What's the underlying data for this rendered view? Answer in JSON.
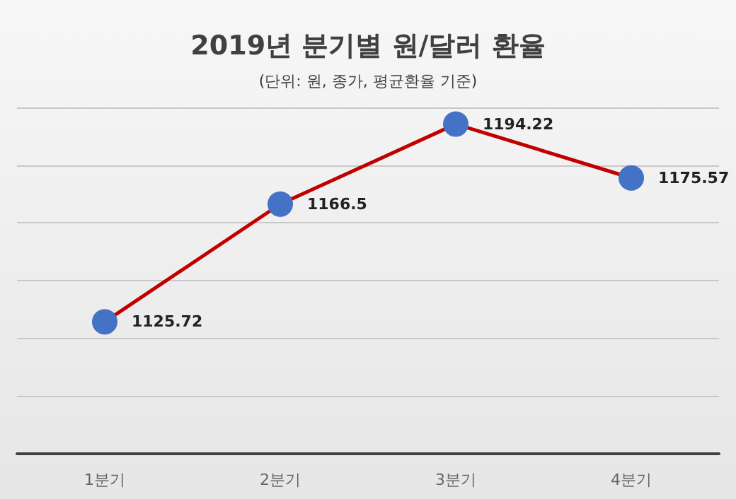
{
  "chart_data": {
    "type": "line",
    "title": "2019년 분기별 원/달러 환율",
    "subtitle": "(단위: 원, 종가, 평균환율 기준)",
    "categories": [
      "1분기",
      "2분기",
      "3분기",
      "4분기"
    ],
    "series": [
      {
        "color": "#c00000",
        "colors": [
          "#4472c4",
          "#4472c4",
          "#4472c4",
          "#4472c4"
        ],
        "values": [
          1125.72,
          1166.5,
          1194.22,
          1175.57
        ]
      }
    ],
    "ylim": [
      1080,
      1200
    ],
    "yticks": [
      {
        "value": 1080,
        "label": null
      },
      {
        "value": 1100,
        "label": null
      },
      {
        "value": 1120,
        "label": null
      },
      {
        "value": 1140,
        "label": null
      },
      {
        "value": 1160,
        "label": null
      },
      {
        "value": 1180,
        "label": null
      },
      {
        "value": 1200,
        "label": null
      }
    ],
    "grid": "y",
    "marker": "circle",
    "line_style": "solid",
    "data_labels": true,
    "tick_labels": "x"
  }
}
